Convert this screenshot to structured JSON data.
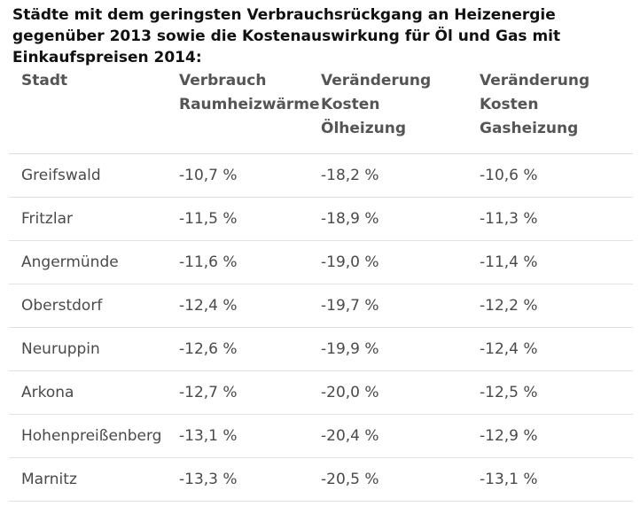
{
  "title": "Städte mit dem geringsten Verbrauchsrückgang an Heizenergie gegenüber 2013 sowie die Kostenauswirkung für Öl und Gas mit Einkaufspreisen 2014:",
  "table": {
    "headers": [
      "Stadt",
      "Verbrauch\nRaumheizwärme",
      "Veränderung\nKosten Ölheizung",
      "Veränderung\nKosten\nGasheizung"
    ],
    "rows": [
      [
        "Greifswald",
        "-10,7 %",
        "-18,2 %",
        "-10,6 %"
      ],
      [
        "Fritzlar",
        "-11,5 %",
        "-18,9 %",
        "-11,3 %"
      ],
      [
        "Angermünde",
        "-11,6 %",
        "-19,0 %",
        "-11,4 %"
      ],
      [
        "Oberstdorf",
        "-12,4 %",
        "-19,7 %",
        "-12,2 %"
      ],
      [
        "Neuruppin",
        "-12,6 %",
        "-19,9 %",
        "-12,4 %"
      ],
      [
        "Arkona",
        "-12,7 %",
        "-20,0 %",
        "-12,5 %"
      ],
      [
        "Hohenpreißenberg",
        "-13,1 %",
        "-20,4 %",
        "-12,9 %"
      ],
      [
        "Marnitz",
        "-13,3 %",
        "-20,5 %",
        "-13,1 %"
      ]
    ]
  }
}
